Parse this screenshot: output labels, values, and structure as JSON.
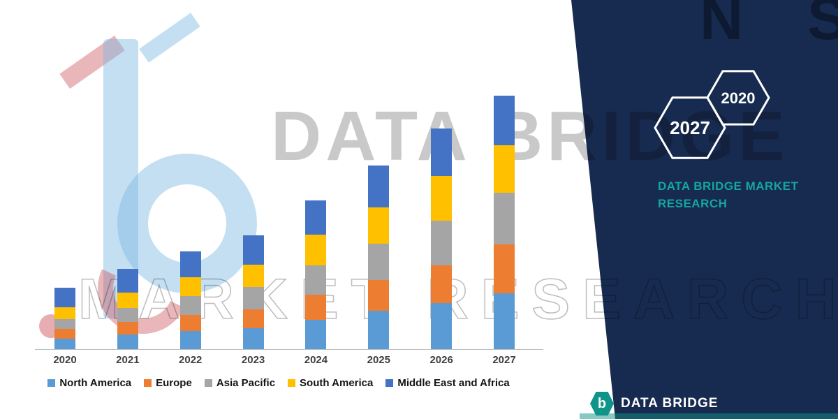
{
  "brand": {
    "colors": {
      "navy": "#172A4F",
      "teal": "#14A79D",
      "logo_teal": "#0E9488"
    },
    "navy_panel": {
      "hex_left_year": "2027",
      "hex_right_year": "2020",
      "title": "DATA BRIDGE MARKET RESEARCH"
    },
    "footer_logo": {
      "icon_letter": "b",
      "text": "DATA BRIDGE"
    }
  },
  "watermarks": {
    "primary": "DATA BRIDGE",
    "secondary": "MARKET RESEARCH",
    "navy_letters": "N S"
  },
  "chart_data": {
    "type": "bar",
    "stacked": true,
    "title": "",
    "xlabel": "",
    "ylabel": "",
    "value_axis_visible": false,
    "legend_position": "bottom",
    "units": "relative height (no value axis shown in image)",
    "categories": [
      "2020",
      "2021",
      "2022",
      "2023",
      "2024",
      "2025",
      "2026",
      "2027"
    ],
    "series": [
      {
        "name": "North America",
        "color": "#5B9BD5",
        "values": [
          15,
          21,
          26,
          30,
          42,
          55,
          66,
          80
        ]
      },
      {
        "name": "Europe",
        "color": "#ED7D31",
        "values": [
          14,
          18,
          23,
          27,
          36,
          44,
          54,
          70
        ]
      },
      {
        "name": "Asia Pacific",
        "color": "#A5A5A5",
        "values": [
          14,
          20,
          27,
          32,
          42,
          52,
          64,
          74
        ]
      },
      {
        "name": "South America",
        "color": "#FFC000",
        "values": [
          17,
          22,
          27,
          32,
          44,
          52,
          64,
          68
        ]
      },
      {
        "name": "Middle East and Africa",
        "color": "#4472C4",
        "values": [
          28,
          34,
          37,
          42,
          49,
          60,
          68,
          71
        ]
      }
    ],
    "totals": [
      88,
      115,
      140,
      163,
      213,
      263,
      316,
      363
    ]
  }
}
